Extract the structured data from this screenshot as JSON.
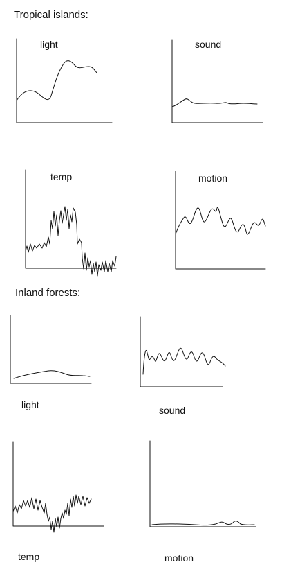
{
  "sections": [
    {
      "heading": "Tropical islands:",
      "plots": [
        {
          "label": "light"
        },
        {
          "label": "sound"
        },
        {
          "label": "temp"
        },
        {
          "label": "motion"
        }
      ]
    },
    {
      "heading": "Inland forests:",
      "plots": [
        {
          "label": "light"
        },
        {
          "label": "sound"
        },
        {
          "label": "temp"
        },
        {
          "label": "motion"
        }
      ]
    }
  ]
}
